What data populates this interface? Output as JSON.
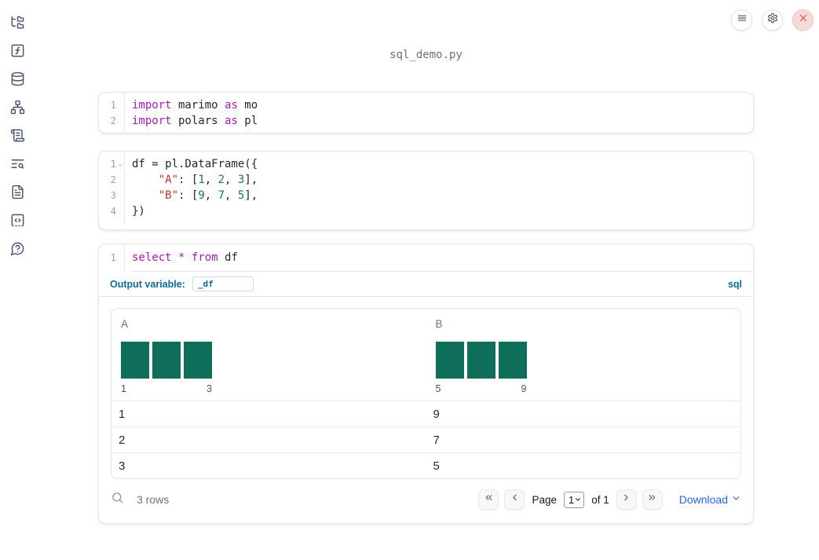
{
  "window": {
    "title": "sql_demo.py"
  },
  "topbar": {
    "buttons": [
      {
        "name": "menu",
        "icon": "hamburger-menu-icon"
      },
      {
        "name": "settings",
        "icon": "gear-icon"
      },
      {
        "name": "shutdown",
        "icon": "close-icon"
      }
    ]
  },
  "sidebar": {
    "icons": [
      "folder-tree-icon",
      "function-square-icon",
      "database-icon",
      "network-graph-icon",
      "scroll-text-icon",
      "text-search-icon",
      "file-text-icon",
      "code-snippet-icon",
      "help-chat-icon"
    ]
  },
  "cells": [
    {
      "id": "imports",
      "lines": [
        {
          "n": "1",
          "fold": false,
          "tokens": [
            [
              "import",
              "kw"
            ],
            [
              " marimo ",
              ""
            ],
            [
              "as",
              "kw"
            ],
            [
              " mo",
              ""
            ]
          ]
        },
        {
          "n": "2",
          "fold": false,
          "tokens": [
            [
              "import",
              "kw"
            ],
            [
              " polars ",
              ""
            ],
            [
              "as",
              "kw"
            ],
            [
              " pl",
              ""
            ]
          ]
        }
      ]
    },
    {
      "id": "dataframe",
      "lines": [
        {
          "n": "1",
          "fold": true,
          "tokens": [
            [
              "df = pl.DataFrame({",
              ""
            ]
          ]
        },
        {
          "n": "2",
          "fold": false,
          "tokens": [
            [
              "    ",
              ""
            ],
            [
              "\"A\"",
              "str"
            ],
            [
              ": [",
              ""
            ],
            [
              "1",
              "num"
            ],
            [
              ", ",
              ""
            ],
            [
              "2",
              "num"
            ],
            [
              ", ",
              ""
            ],
            [
              "3",
              "num"
            ],
            [
              "],",
              ""
            ]
          ]
        },
        {
          "n": "3",
          "fold": false,
          "tokens": [
            [
              "    ",
              ""
            ],
            [
              "\"B\"",
              "str"
            ],
            [
              ": [",
              ""
            ],
            [
              "9",
              "num"
            ],
            [
              ", ",
              ""
            ],
            [
              "7",
              "num"
            ],
            [
              ", ",
              ""
            ],
            [
              "5",
              "num"
            ],
            [
              "],",
              ""
            ]
          ]
        },
        {
          "n": "4",
          "fold": false,
          "tokens": [
            [
              "})",
              ""
            ]
          ]
        }
      ]
    },
    {
      "id": "sql",
      "lines": [
        {
          "n": "1",
          "fold": false,
          "tokens": [
            [
              "select",
              "kw"
            ],
            [
              " ",
              ""
            ],
            [
              "*",
              "kw"
            ],
            [
              " ",
              ""
            ],
            [
              "from",
              "kw"
            ],
            [
              " df",
              ""
            ]
          ]
        }
      ]
    }
  ],
  "sql_meta": {
    "output_variable_label": "Output variable:",
    "output_variable_value": "_df",
    "language": "sql"
  },
  "table": {
    "columns": [
      {
        "name": "A",
        "hist_min": "1",
        "hist_max": "3",
        "bars": [
          1,
          1,
          1
        ]
      },
      {
        "name": "B",
        "hist_min": "5",
        "hist_max": "9",
        "bars": [
          1,
          1,
          1
        ]
      }
    ],
    "rows": [
      [
        "1",
        "9"
      ],
      [
        "2",
        "7"
      ],
      [
        "3",
        "5"
      ]
    ],
    "footer": {
      "rows_label": "3 rows",
      "page_label": "Page",
      "page_value": "1",
      "of_label": "of 1",
      "download_label": "Download"
    }
  },
  "colors": {
    "accent_blue": "#0d6a93",
    "histogram_bar": "#0f6e5a",
    "syntax_keyword": "#a21caf",
    "syntax_string": "#b83a32",
    "syntax_number": "#15803d",
    "link_blue": "#2563eb"
  }
}
